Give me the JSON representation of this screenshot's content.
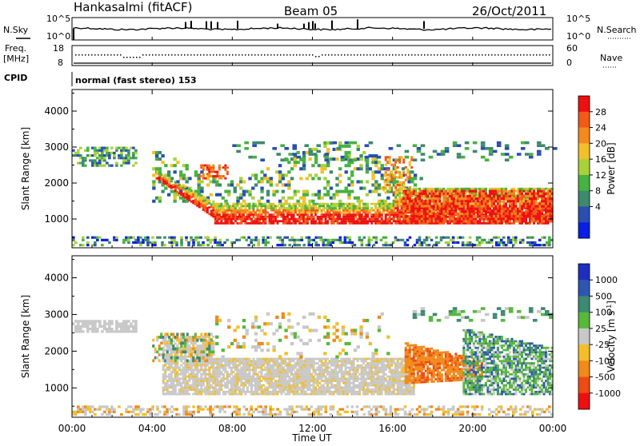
{
  "header": {
    "station": "Hankasalmi (fitACF)",
    "beam": "Beam 05",
    "date": "26/Oct/2011"
  },
  "top_panels": {
    "nsky_label": "N.Sky",
    "nsky_top": "10^5",
    "nsky_bottom": "10^0",
    "nsearch_label": "N.Search",
    "nsearch_top": "10^5",
    "nsearch_bottom": "10^0",
    "freq_label_1": "Freq.",
    "freq_label_2": "[MHz]",
    "freq_top": "18",
    "freq_bottom": "8",
    "nave_label": "Nave",
    "nave_top": "60",
    "nave_bottom": "0",
    "cpid_label": "CPID",
    "cpid_value": "normal (fast stereo) 153"
  },
  "colors": {
    "power": [
      "#0a1ee6",
      "#2a4fb0",
      "#3d8a6e",
      "#46b23f",
      "#a8d23a",
      "#f2c02a",
      "#f28a1e",
      "#f25a18",
      "#ee1010"
    ],
    "velocity": [
      "#1e2fc0",
      "#2e56b0",
      "#3d8a72",
      "#58b83a",
      "#c8c8c8",
      "#f2be2a",
      "#f08a1a",
      "#ee4a14",
      "#ee1010"
    ]
  },
  "chart_data": [
    {
      "type": "heatmap",
      "title": "",
      "ylabel": "Slant Range [km]",
      "xlabel": "",
      "x_ticks": [
        "00:00",
        "04:00",
        "08:00",
        "12:00",
        "16:00",
        "20:00",
        "00:00"
      ],
      "xlim_hours": [
        0,
        24
      ],
      "y_ticks": [
        1000,
        2000,
        3000,
        4000
      ],
      "ylim_km": [
        200,
        4600
      ],
      "colorbar": {
        "label": "Power [dB]",
        "ticks": [
          4,
          8,
          12,
          16,
          20,
          24,
          28
        ]
      },
      "regions": [
        {
          "name": "near-range strip",
          "t_start": 0,
          "t_end": 24,
          "range_low": 250,
          "range_high": 500,
          "value_desc": "low"
        },
        {
          "name": "early far echoes",
          "t_start": 0,
          "t_end": 3,
          "range_low": 2500,
          "range_high": 2900,
          "value_desc": "low-mid"
        },
        {
          "name": "main auroral band",
          "t_start": 4,
          "t_end": 24,
          "range_low": 800,
          "range_high": 1500,
          "value_desc": "28"
        },
        {
          "name": "upper scatter",
          "t_start": 4,
          "t_end": 17,
          "range_low": 1500,
          "range_high": 3100,
          "value_desc": "12-20"
        }
      ]
    },
    {
      "type": "heatmap",
      "title": "",
      "ylabel": "Slant Range [km]",
      "xlabel": "Time UT",
      "x_ticks": [
        "00:00",
        "04:00",
        "08:00",
        "12:00",
        "16:00",
        "20:00",
        "00:00"
      ],
      "xlim_hours": [
        0,
        24
      ],
      "y_ticks": [
        1000,
        2000,
        3000,
        4000
      ],
      "ylim_km": [
        200,
        4600
      ],
      "colorbar": {
        "label": "Velocity [m s^-1]",
        "ticks": [
          1000,
          500,
          100,
          25,
          -25,
          -100,
          -500,
          -1000
        ]
      },
      "regions": [
        {
          "name": "near-range strip",
          "t_start": 0,
          "t_end": 24,
          "range_low": 250,
          "range_high": 500,
          "value_desc": "-25 to 25"
        },
        {
          "name": "ground scatter band",
          "t_start": 4,
          "t_end": 17,
          "range_low": 800,
          "range_high": 2000,
          "value_desc": "-25 to 25"
        },
        {
          "name": "negative velocity patch",
          "t_start": 16.5,
          "t_end": 20.5,
          "range_low": 1100,
          "range_high": 2300,
          "value_desc": "-100 to -500"
        },
        {
          "name": "positive velocity patch",
          "t_start": 19.5,
          "t_end": 24,
          "range_low": 800,
          "range_high": 2600,
          "value_desc": "100 to 500"
        }
      ]
    }
  ]
}
